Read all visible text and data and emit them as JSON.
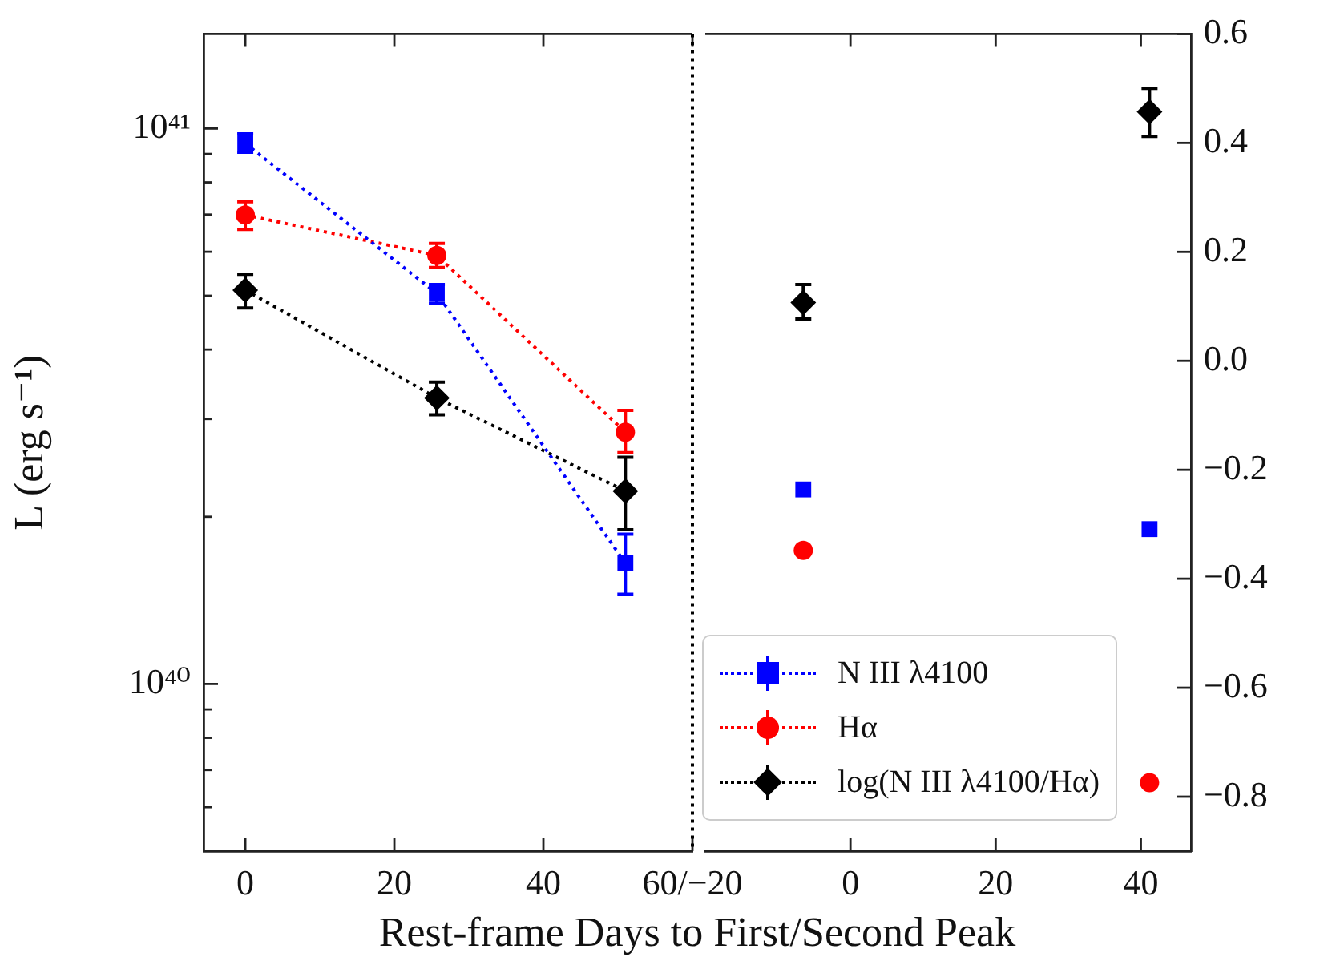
{
  "chart_data": [
    {
      "type": "line",
      "xlabel": "Rest-frame Days to First/Second Peak",
      "ylabel": "L (erg s⁻¹)",
      "xlim": [
        -5.6,
        60
      ],
      "xticks": [
        0,
        20,
        40,
        {
          "value": 60,
          "label": "60/−20"
        }
      ],
      "ylim": [
        5e+39,
        1.48e+41
      ],
      "yticks": [
        {
          "value": 6e+39,
          "label": null
        },
        {
          "value": 7e+39,
          "label": null
        },
        {
          "value": 8e+39,
          "label": null
        },
        {
          "value": 9e+39,
          "label": null
        },
        {
          "value": 1e+40,
          "label": "10⁴⁰"
        },
        {
          "value": 2e+40,
          "label": null
        },
        {
          "value": 3e+40,
          "label": null
        },
        {
          "value": 4e+40,
          "label": null
        },
        {
          "value": 5e+40,
          "label": null
        },
        {
          "value": 6e+40,
          "label": null
        },
        {
          "value": 7e+40,
          "label": null
        },
        {
          "value": 8e+40,
          "label": null
        },
        {
          "value": 9e+40,
          "label": null
        },
        {
          "value": 1e+41,
          "label": "10⁴¹"
        }
      ],
      "y2lim": [
        -0.9,
        0.6
      ],
      "log": "y",
      "tick_labels": "x y",
      "legend": "bottom right",
      "ref_lines": [
        {
          "axis": "x",
          "value": 60,
          "line_style": "dotted",
          "color": "#000000"
        }
      ],
      "series": [
        {
          "name": "N III λ4100",
          "color": "#0000ff",
          "marker": "square",
          "line_style": "dotted",
          "x": [
            0,
            25.7,
            51.0
          ],
          "values": [
            9.4e+40,
            5.05e+40,
            1.65e+40
          ],
          "errors": [
            [
              9.06e+40,
              9.78e+40
            ],
            [
              4.85e+40,
              5.24e+40
            ],
            [
              1.45e+40,
              1.86e+40
            ]
          ]
        },
        {
          "name": "Hα",
          "color": "#ff0000",
          "marker": "circle",
          "line_style": "dotted",
          "x": [
            0,
            25.7,
            51.0
          ],
          "values": [
            6.99e+40,
            5.91e+40,
            2.84e+40
          ],
          "errors": [
            [
              6.58e+40,
              7.38e+40
            ],
            [
              5.62e+40,
              6.21e+40
            ],
            [
              2.61e+40,
              3.11e+40
            ]
          ]
        },
        {
          "name": "log(N III λ4100/Hα)",
          "color": "#000000",
          "marker": "diamond",
          "line_style": "dotted",
          "axis": "y2",
          "x": [
            0,
            25.7,
            51.0
          ],
          "values": [
            0.13,
            -0.068,
            -0.239
          ],
          "errors": [
            [
              0.097,
              0.159
            ],
            [
              -0.099,
              -0.039
            ],
            [
              -0.31,
              -0.177
            ]
          ]
        }
      ]
    },
    {
      "type": "scatter",
      "xlim": [
        -20,
        46.9
      ],
      "xticks": [
        0,
        20,
        40
      ],
      "ylim": [
        5e+39,
        1.48e+41
      ],
      "y2lim": [
        -0.9,
        0.6
      ],
      "y2ticks": [
        {
          "value": -0.8,
          "label": "−0.8"
        },
        {
          "value": -0.6,
          "label": "−0.6"
        },
        {
          "value": -0.4,
          "label": "−0.4"
        },
        {
          "value": -0.2,
          "label": "−0.2"
        },
        {
          "value": 0,
          "label": "0.0"
        },
        0.2,
        0.4,
        0.6
      ],
      "log": "y",
      "tick_labels": "x y2",
      "series": [
        {
          "color": "#0000ff",
          "marker": "square",
          "x": [
            -6.5,
            41.2
          ],
          "values": [
            2.24e+40,
            1.9e+40
          ]
        },
        {
          "color": "#ff0000",
          "marker": "circle",
          "x": [
            -6.5,
            41.2
          ],
          "values": [
            1.74e+40,
            6.64e+39
          ]
        },
        {
          "color": "#000000",
          "marker": "diamond",
          "axis": "y2",
          "x": [
            -6.5,
            41.2
          ],
          "values": [
            0.107,
            0.457
          ],
          "errors": [
            [
              0.077,
              0.14
            ],
            [
              0.412,
              0.5
            ]
          ]
        }
      ]
    }
  ]
}
